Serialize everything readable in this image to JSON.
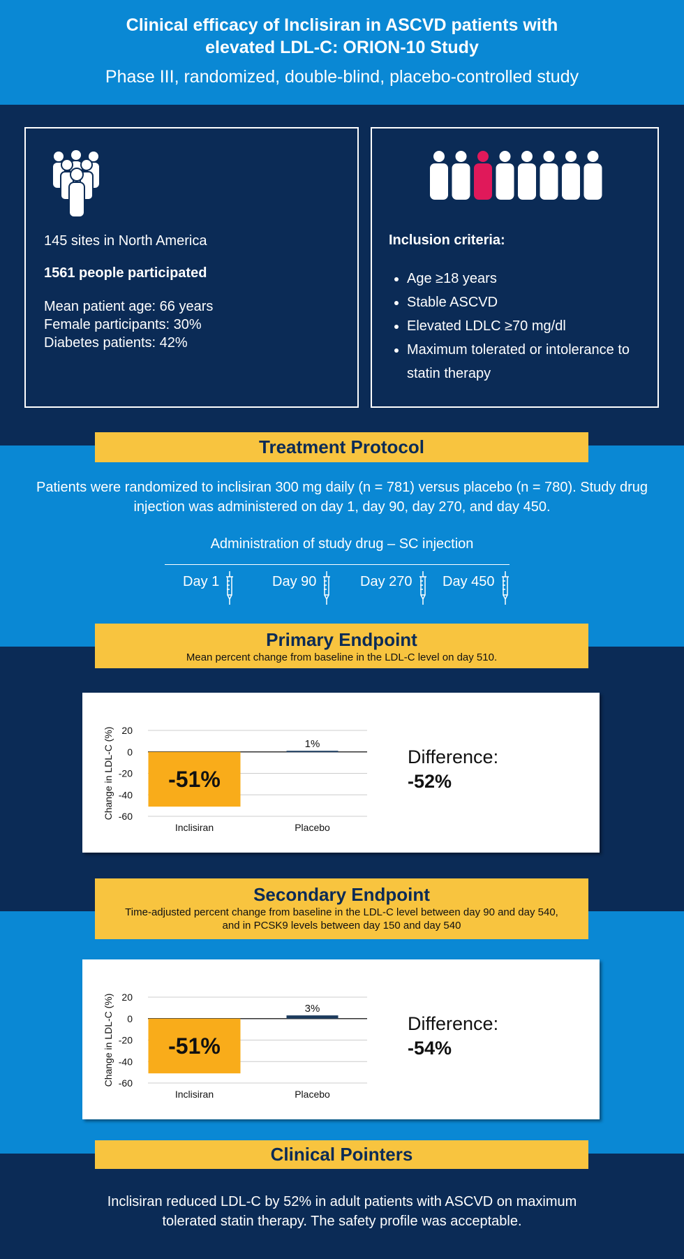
{
  "header": {
    "title": "Clinical efficacy of Inclisiran in ASCVD patients with elevated LDL-C: ORION-10 Study",
    "subtitle": "Phase III, randomized, double-blind, placebo-controlled study"
  },
  "study": {
    "lines": [
      "145 sites in North America",
      "1561 people participated",
      "Mean patient age: 66 years",
      "Female participants: 30%",
      "Diabetes patients: 42%"
    ]
  },
  "inclusion": {
    "title": "Inclusion criteria:",
    "items": [
      "Age ≥18 years",
      "Stable ASCVD",
      "Elevated LDLC ≥70 mg/dl",
      "Maximum tolerated or intolerance to statin therapy"
    ]
  },
  "treatment": {
    "title": "Treatment Protocol",
    "text": "Patients were randomized to inclisiran 300 mg daily (n = 781) versus placebo (n = 780). Study drug injection was administered on day 1, day 90, day 270, and day 450.",
    "timeline_title": "Administration of study drug – SC injection",
    "days": [
      "Day 1",
      "Day 90",
      "Day 270",
      "Day 450"
    ]
  },
  "primary_endpoint": {
    "title": "Primary Endpoint",
    "subtitle": "Mean percent change from baseline in the LDL-C level on day 510.",
    "difference_label": "Difference:",
    "difference_value": "-52%",
    "chart": {
      "type": "bar",
      "y_label": "Change in LDL-C (%)",
      "categories": [
        "Inclisiran",
        "Placebo"
      ],
      "values": [
        -51,
        1
      ],
      "value_labels": [
        "-51%",
        "1%"
      ],
      "colors": [
        "#f9ac1a",
        "#1d3c5e"
      ],
      "ylim": [
        -60,
        20
      ],
      "yticks": [
        -60,
        -40,
        -20,
        0,
        20
      ],
      "grid": true
    }
  },
  "secondary_endpoint": {
    "title": "Secondary Endpoint",
    "subtitle": "Time-adjusted percent change from baseline in the LDL-C level between day 90 and day 540, and in PCSK9 levels between day 150 and day 540",
    "difference_label": "Difference:",
    "difference_value": "-54%",
    "chart": {
      "type": "bar",
      "y_label": "Change in LDL-C (%)",
      "categories": [
        "Inclisiran",
        "Placebo"
      ],
      "values": [
        -51,
        3
      ],
      "value_labels": [
        "-51%",
        "3%"
      ],
      "colors": [
        "#f9ac1a",
        "#1d3c5e"
      ],
      "ylim": [
        -60,
        20
      ],
      "yticks": [
        -60,
        -40,
        -20,
        0,
        20
      ],
      "grid": true
    }
  },
  "pointers": {
    "title": "Clinical Pointers",
    "text": "Inclisiran reduced LDL-C by 52% in adult patients with ASCVD on maximum tolerated statin therapy. The safety profile was acceptable."
  }
}
